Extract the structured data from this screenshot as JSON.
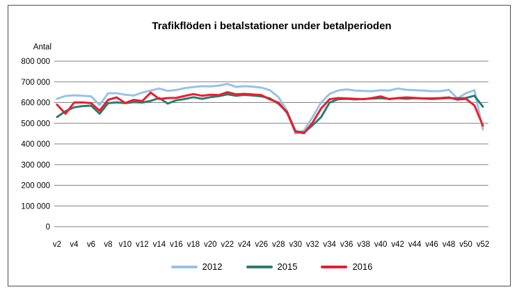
{
  "chart": {
    "border_color": "#4d4d4d",
    "gridline_color": "#808080",
    "background_color": "#ffffff",
    "text_color": "#000000"
  },
  "chart_data": {
    "type": "line",
    "title": "Trafikflöden i betalstationer under betalperioden",
    "xlabel": "",
    "ylabel": "Antal",
    "ylim": [
      0,
      800000
    ],
    "ytick_step": 100000,
    "ytick_labels": [
      "800 000",
      "700 000",
      "600 000",
      "500 000",
      "400 000",
      "300 000",
      "200 000",
      "100 000",
      "0"
    ],
    "x_tick_labels": [
      "v2",
      "v4",
      "v6",
      "v8",
      "v10",
      "v12",
      "v14",
      "v16",
      "v18",
      "v20",
      "v22",
      "v24",
      "v26",
      "v28",
      "v30",
      "v32",
      "v34",
      "v36",
      "v38",
      "v40",
      "v42",
      "v44",
      "v46",
      "v48",
      "v50",
      "v52"
    ],
    "x_week_start": 2,
    "x_week_end": 52,
    "grid": true,
    "legend_position": "bottom",
    "series": [
      {
        "name": "2012",
        "color": "#96C2E8",
        "values": [
          618000,
          632000,
          635000,
          633000,
          630000,
          588000,
          645000,
          645000,
          638000,
          634000,
          648000,
          658000,
          668000,
          656000,
          661000,
          670000,
          675000,
          679000,
          678000,
          682000,
          690000,
          676000,
          679000,
          677000,
          672000,
          660000,
          626000,
          560000,
          449000,
          465000,
          529000,
          600000,
          642000,
          658000,
          664000,
          658000,
          656000,
          655000,
          660000,
          658000,
          668000,
          662000,
          660000,
          658000,
          655000,
          655000,
          662000,
          620000,
          645000,
          660000,
          470000
        ]
      },
      {
        "name": "2015",
        "color": "#2A7D6F",
        "values": [
          530000,
          558000,
          577000,
          583000,
          585000,
          546000,
          597000,
          601000,
          597000,
          602000,
          600000,
          608000,
          622000,
          595000,
          611000,
          617000,
          626000,
          618000,
          626000,
          631000,
          640000,
          633000,
          637000,
          634000,
          630000,
          620000,
          594000,
          555000,
          462000,
          455000,
          490000,
          529000,
          600000,
          616000,
          618000,
          615000,
          617000,
          619000,
          621000,
          618000,
          621000,
          618000,
          621000,
          619000,
          617000,
          619000,
          622000,
          620000,
          622000,
          633000,
          580000
        ]
      },
      {
        "name": "2016",
        "color": "#EE1C2D",
        "values": [
          590000,
          546000,
          600000,
          601000,
          597000,
          561000,
          613000,
          625000,
          598000,
          613000,
          607000,
          648000,
          617000,
          622000,
          623000,
          632000,
          641000,
          633000,
          638000,
          636000,
          650000,
          640000,
          642000,
          639000,
          636000,
          615000,
          600000,
          551000,
          458000,
          452000,
          503000,
          571000,
          616000,
          622000,
          620000,
          618000,
          616000,
          622000,
          630000,
          616000,
          622000,
          625000,
          623000,
          620000,
          620000,
          622000,
          625000,
          614000,
          618000,
          586000,
          488000
        ]
      }
    ]
  }
}
